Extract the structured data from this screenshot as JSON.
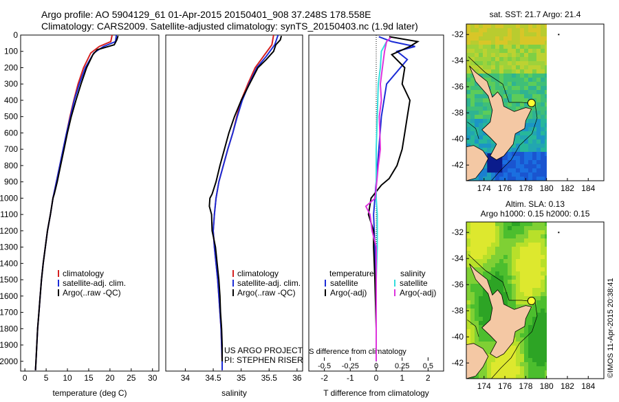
{
  "header": {
    "line1": "Argo profile: AO 5904129_61 01-Apr-2015 20150401_908 37.248S 178.558E",
    "line2": "Climatology: CARS2009. Satellite-adjusted climatology: synTS_20150403.nc (1.9d later)"
  },
  "colors": {
    "climatology": "#d42020",
    "satellite": "#1a2bd6",
    "argo": "#000000",
    "sal_sat": "#33dddd",
    "sal_argo": "#dd33dd"
  },
  "credits": {
    "project": "US ARGO PROJECT",
    "pi": "PI: STEPHEN RISER",
    "imos": "©IMOS 11-Apr-2015 20:38:41"
  },
  "chart_data": [
    {
      "id": "temp",
      "type": "line",
      "xlabel": "temperature (deg C)",
      "ylabel": "",
      "xlim": [
        -1,
        31.5
      ],
      "ylim": [
        2060,
        0
      ],
      "xticks": [
        0,
        5,
        10,
        15,
        20,
        25,
        30
      ],
      "yticks": [
        0,
        100,
        200,
        300,
        400,
        500,
        600,
        700,
        800,
        900,
        1000,
        1100,
        1200,
        1300,
        1400,
        1500,
        1600,
        1700,
        1800,
        1900,
        2000
      ],
      "series": [
        {
          "name": "climatology",
          "color": "#d42020",
          "points": [
            [
              20.5,
              0
            ],
            [
              20.2,
              40
            ],
            [
              17.5,
              70
            ],
            [
              15.5,
              110
            ],
            [
              13.8,
              200
            ],
            [
              12.5,
              300
            ],
            [
              11.5,
              400
            ],
            [
              10.6,
              500
            ],
            [
              9.8,
              600
            ],
            [
              9,
              700
            ],
            [
              8.2,
              800
            ],
            [
              7.4,
              900
            ],
            [
              6.6,
              1000
            ],
            [
              6,
              1100
            ],
            [
              5.3,
              1200
            ],
            [
              4.8,
              1300
            ],
            [
              4.3,
              1400
            ],
            [
              3.9,
              1500
            ],
            [
              3.6,
              1600
            ],
            [
              3.3,
              1700
            ],
            [
              3,
              1800
            ],
            [
              2.8,
              1900
            ],
            [
              2.6,
              2000
            ],
            [
              2.5,
              2055
            ]
          ]
        },
        {
          "name": "satellite-adj. clim.",
          "color": "#1a2bd6",
          "points": [
            [
              21.5,
              0
            ],
            [
              21.3,
              40
            ],
            [
              18.5,
              70
            ],
            [
              16.2,
              110
            ],
            [
              14.2,
              200
            ],
            [
              12.8,
              300
            ],
            [
              11.6,
              400
            ],
            [
              10.7,
              500
            ],
            [
              9.8,
              600
            ],
            [
              9,
              700
            ],
            [
              8.2,
              800
            ],
            [
              7.4,
              900
            ],
            [
              6.6,
              1000
            ],
            [
              6,
              1100
            ],
            [
              5.3,
              1200
            ],
            [
              4.8,
              1300
            ],
            [
              4.3,
              1400
            ],
            [
              3.9,
              1500
            ],
            [
              3.6,
              1600
            ],
            [
              3.3,
              1700
            ],
            [
              3,
              1800
            ],
            [
              2.8,
              1900
            ],
            [
              2.6,
              2000
            ],
            [
              2.5,
              2055
            ]
          ]
        },
        {
          "name": "Argo(..raw -QC)",
          "color": "#000000",
          "points": [
            [
              21.9,
              5
            ],
            [
              21.6,
              30
            ],
            [
              21,
              60
            ],
            [
              17,
              90
            ],
            [
              16,
              120
            ],
            [
              14.5,
              200
            ],
            [
              13.2,
              300
            ],
            [
              12,
              400
            ],
            [
              10.9,
              500
            ],
            [
              10,
              600
            ],
            [
              9.2,
              700
            ],
            [
              8.4,
              800
            ],
            [
              7.6,
              900
            ],
            [
              6.9,
              975
            ],
            [
              6.6,
              1000
            ],
            [
              6,
              1100
            ],
            [
              5.3,
              1200
            ],
            [
              4.8,
              1300
            ],
            [
              4.3,
              1400
            ],
            [
              3.9,
              1500
            ],
            [
              3.6,
              1600
            ],
            [
              3.3,
              1700
            ],
            [
              3,
              1800
            ],
            [
              2.8,
              1900
            ],
            [
              2.6,
              2000
            ],
            [
              2.5,
              2055
            ]
          ]
        }
      ],
      "legend": [
        "climatology",
        "satellite-adj. clim.",
        "Argo(..raw -QC)"
      ]
    },
    {
      "id": "sal",
      "type": "line",
      "xlabel": "salinity",
      "ylabel": "",
      "xlim": [
        33.65,
        36.1
      ],
      "ylim": [
        2060,
        0
      ],
      "xticks": [
        34,
        34.5,
        35,
        35.5,
        36
      ],
      "xticklabels": [
        "34",
        "34.5",
        "35",
        "35.5",
        "36"
      ],
      "series": [
        {
          "name": "climatology",
          "color": "#d42020",
          "points": [
            [
              35.58,
              0
            ],
            [
              35.55,
              60
            ],
            [
              35.4,
              130
            ],
            [
              35.25,
              200
            ],
            [
              35.12,
              300
            ],
            [
              35,
              400
            ],
            [
              34.92,
              500
            ],
            [
              34.85,
              600
            ],
            [
              34.76,
              700
            ],
            [
              34.68,
              800
            ],
            [
              34.6,
              900
            ],
            [
              34.55,
              1000
            ],
            [
              34.52,
              1100
            ],
            [
              34.5,
              1200
            ],
            [
              34.52,
              1300
            ],
            [
              34.55,
              1400
            ],
            [
              34.58,
              1500
            ],
            [
              34.6,
              1600
            ],
            [
              34.62,
              1700
            ],
            [
              34.64,
              1800
            ],
            [
              34.65,
              1900
            ],
            [
              34.66,
              2000
            ],
            [
              34.66,
              2055
            ]
          ]
        },
        {
          "name": "satellite-adj. clim.",
          "color": "#1a2bd6",
          "points": [
            [
              35.66,
              0
            ],
            [
              35.6,
              60
            ],
            [
              35.45,
              130
            ],
            [
              35.28,
              200
            ],
            [
              35.14,
              300
            ],
            [
              35.02,
              400
            ],
            [
              34.93,
              500
            ],
            [
              34.85,
              600
            ],
            [
              34.76,
              700
            ],
            [
              34.68,
              800
            ],
            [
              34.6,
              900
            ],
            [
              34.55,
              1000
            ],
            [
              34.52,
              1100
            ],
            [
              34.5,
              1200
            ],
            [
              34.52,
              1300
            ],
            [
              34.55,
              1400
            ],
            [
              34.58,
              1500
            ],
            [
              34.6,
              1600
            ],
            [
              34.62,
              1700
            ],
            [
              34.64,
              1800
            ],
            [
              34.65,
              1900
            ],
            [
              34.66,
              2000
            ],
            [
              34.66,
              2055
            ]
          ]
        },
        {
          "name": "Argo(..raw -QC)",
          "color": "#000000",
          "points": [
            [
              35.72,
              5
            ],
            [
              35.7,
              30
            ],
            [
              35.62,
              60
            ],
            [
              35.58,
              100
            ],
            [
              35.45,
              150
            ],
            [
              35.3,
              200
            ],
            [
              35.15,
              300
            ],
            [
              35,
              400
            ],
            [
              34.88,
              500
            ],
            [
              34.78,
              600
            ],
            [
              34.7,
              700
            ],
            [
              34.62,
              800
            ],
            [
              34.55,
              900
            ],
            [
              34.48,
              975
            ],
            [
              34.44,
              1000
            ],
            [
              34.43,
              1050
            ],
            [
              34.47,
              1100
            ],
            [
              34.48,
              1200
            ],
            [
              34.51,
              1250
            ],
            [
              34.54,
              1300
            ],
            [
              34.57,
              1400
            ],
            [
              34.6,
              1500
            ],
            [
              34.62,
              1600
            ],
            [
              34.63,
              1700
            ],
            [
              34.65,
              1800
            ],
            [
              34.66,
              1900
            ],
            [
              34.66,
              2000
            ]
          ]
        }
      ],
      "legend": [
        "climatology",
        "satellite-adj. clim.",
        "Argo(..raw -QC)"
      ]
    },
    {
      "id": "diff",
      "type": "line",
      "xlabel": "T difference from climatology",
      "xlabel_top": "S difference from climatology",
      "xlim": [
        -2.6,
        2.6
      ],
      "ylim": [
        2060,
        0
      ],
      "xticks": [
        -2,
        -1,
        0,
        1,
        2
      ],
      "xticklabels": [
        "-2",
        "-1",
        "0",
        "1",
        "2"
      ],
      "sticks": [
        -0.5,
        -0.25,
        0,
        0.25,
        0.5
      ],
      "sticklabels": [
        "-0.5",
        "-0.25",
        "0",
        "0.25",
        "0.5"
      ],
      "series": [
        {
          "name": "temperature satellite",
          "color": "#1a2bd6",
          "points": [
            [
              0.1,
              10
            ],
            [
              0.6,
              40
            ],
            [
              1.5,
              70
            ],
            [
              0.8,
              100
            ],
            [
              1.2,
              150
            ],
            [
              0.4,
              300
            ],
            [
              0.2,
              500
            ],
            [
              0.1,
              700
            ],
            [
              0,
              900
            ],
            [
              -0.1,
              1100
            ],
            [
              -0.05,
              1300
            ],
            [
              0,
              1600
            ],
            [
              0,
              2000
            ]
          ]
        },
        {
          "name": "temperature Argo(-adj)",
          "color": "#000000",
          "points": [
            [
              0.5,
              10
            ],
            [
              1.6,
              40
            ],
            [
              1.3,
              70
            ],
            [
              0.6,
              120
            ],
            [
              1.1,
              200
            ],
            [
              1,
              300
            ],
            [
              1.3,
              400
            ],
            [
              1.2,
              500
            ],
            [
              1.1,
              600
            ],
            [
              1,
              700
            ],
            [
              0.8,
              800
            ],
            [
              0.5,
              880
            ],
            [
              0.2,
              920
            ],
            [
              0,
              960
            ],
            [
              -0.2,
              1000
            ],
            [
              -0.3,
              1100
            ],
            [
              -0.1,
              1200
            ],
            [
              -0.1,
              1300
            ],
            [
              -0.05,
              1500
            ],
            [
              0,
              1800
            ],
            [
              0,
              2000
            ]
          ]
        },
        {
          "name": "salinity satellite",
          "color": "#33dddd",
          "points": [
            [
              0.1,
              40
            ],
            [
              0.05,
              100
            ],
            [
              0.04,
              200
            ],
            [
              0.02,
              300
            ],
            [
              0.01,
              500
            ],
            [
              0,
              700
            ],
            [
              0,
              1000
            ],
            [
              0.01,
              1100
            ],
            [
              0.01,
              1300
            ],
            [
              0,
              1500
            ],
            [
              0,
              2000
            ]
          ]
        },
        {
          "name": "salinity Argo(-adj)",
          "color": "#dd33dd",
          "points": [
            [
              0.14,
              15
            ],
            [
              0.1,
              40
            ],
            [
              0.08,
              100
            ],
            [
              0.06,
              200
            ],
            [
              0.04,
              300
            ],
            [
              0.05,
              400
            ],
            [
              0.03,
              500
            ],
            [
              0.04,
              700
            ],
            [
              0.02,
              800
            ],
            [
              -0.01,
              1000
            ],
            [
              -0.1,
              1050
            ],
            [
              -0.06,
              1100
            ],
            [
              -0.04,
              1200
            ],
            [
              0,
              1300
            ],
            [
              0,
              2000
            ]
          ]
        }
      ],
      "legend": {
        "temp_title": "temperature",
        "sal_title": "salinity",
        "temp_items": [
          "satellite",
          "Argo(-adj)"
        ],
        "sal_items": [
          "satellite",
          "Argo(-adj)"
        ]
      }
    },
    {
      "id": "map_sst",
      "type": "heatmap",
      "title": "sat. SST: 21.7  Argo: 21.4",
      "xlim": [
        172.3,
        185.5
      ],
      "ylim": [
        -43.2,
        -31.2
      ],
      "xticks": [
        174,
        176,
        178,
        180,
        182,
        184
      ],
      "yticks": [
        -32,
        -34,
        -36,
        -38,
        -40,
        -42
      ],
      "argo_position": {
        "lon": 178.558,
        "lat": -37.248
      }
    },
    {
      "id": "map_sla",
      "type": "heatmap",
      "title": "Altim. SLA: 0.13",
      "subtitle": "Argo h1000: 0.15 h2000: 0.15",
      "xlim": [
        172.3,
        185.5
      ],
      "ylim": [
        -43.2,
        -31.2
      ],
      "xticks": [
        174,
        176,
        178,
        180,
        182,
        184
      ],
      "yticks": [
        -32,
        -34,
        -36,
        -38,
        -40,
        -42
      ],
      "argo_position": {
        "lon": 178.558,
        "lat": -37.248
      }
    }
  ]
}
